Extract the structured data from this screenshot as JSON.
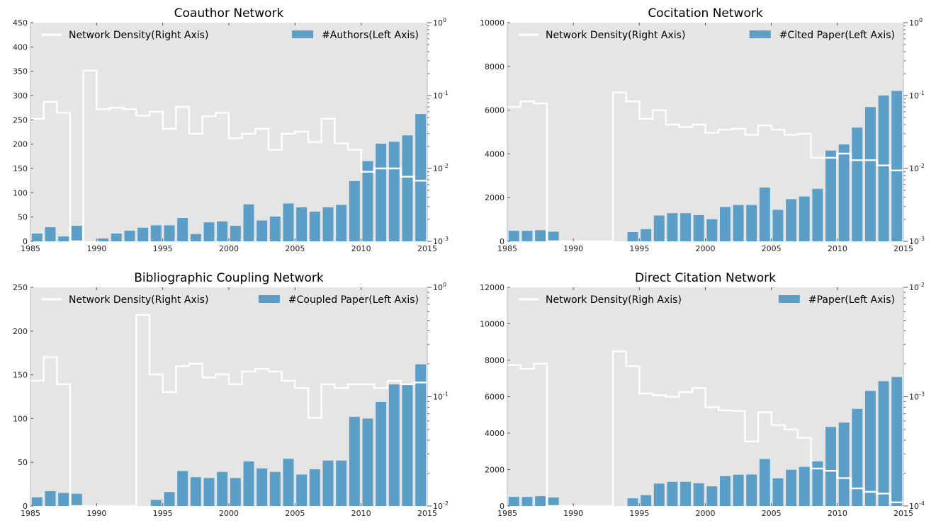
{
  "chart_data": [
    {
      "type": "bar",
      "title": "Coauthor Network",
      "x": [
        1985,
        1986,
        1987,
        1988,
        1989,
        1990,
        1991,
        1992,
        1993,
        1994,
        1995,
        1996,
        1997,
        1998,
        1999,
        2000,
        2001,
        2002,
        2003,
        2004,
        2005,
        2006,
        2007,
        2008,
        2009,
        2010,
        2011,
        2012,
        2013,
        2014
      ],
      "xlim": [
        1985,
        2015
      ],
      "xticks": [
        "1985",
        "1990",
        "1995",
        "2000",
        "2005",
        "2010",
        "2015"
      ],
      "ylim_left": [
        0,
        450
      ],
      "yticks_left": [
        "0",
        "50",
        "100",
        "150",
        "200",
        "250",
        "300",
        "350",
        "400",
        "450"
      ],
      "ylim_right_log": [
        -3,
        0
      ],
      "yticks_right": [
        {
          "base": "10",
          "exp": "-3"
        },
        {
          "base": "10",
          "exp": "-2"
        },
        {
          "base": "10",
          "exp": "-1"
        },
        {
          "base": "10",
          "exp": "0"
        }
      ],
      "grid": false,
      "series": [
        {
          "name": "#Authors(Left Axis)",
          "axis": "left",
          "kind": "bar",
          "color": "#5b9fc9",
          "values": [
            16,
            29,
            10,
            32,
            0,
            6,
            16,
            22,
            28,
            33,
            33,
            48,
            15,
            39,
            41,
            32,
            76,
            43,
            51,
            78,
            70,
            61,
            70,
            75,
            124,
            165,
            201,
            205,
            218,
            262
          ]
        },
        {
          "name": "Network Density(Right Axis)",
          "axis": "right",
          "kind": "step",
          "color": "#ffffff",
          "values": [
            0.048,
            0.082,
            0.058,
            0.001,
            0.22,
            0.065,
            0.068,
            0.065,
            0.053,
            0.06,
            0.035,
            0.07,
            0.03,
            0.052,
            0.058,
            0.026,
            0.03,
            0.035,
            0.018,
            0.03,
            0.032,
            0.023,
            0.048,
            0.022,
            0.018,
            0.009,
            0.01,
            0.01,
            0.0077,
            0.0068
          ]
        }
      ],
      "legend": {
        "left": "Network Density(Right Axis)",
        "right": "#Authors(Left Axis)",
        "placement": "top"
      }
    },
    {
      "type": "bar",
      "title": "Cocitation Network",
      "x": [
        1985,
        1986,
        1987,
        1988,
        1989,
        1990,
        1991,
        1992,
        1993,
        1994,
        1995,
        1996,
        1997,
        1998,
        1999,
        2000,
        2001,
        2002,
        2003,
        2004,
        2005,
        2006,
        2007,
        2008,
        2009,
        2010,
        2011,
        2012,
        2013,
        2014
      ],
      "xlim": [
        1985,
        2015
      ],
      "xticks": [
        "1985",
        "1990",
        "1995",
        "2000",
        "2005",
        "2010",
        "2015"
      ],
      "ylim_left": [
        0,
        10000
      ],
      "yticks_left": [
        "0",
        "2000",
        "4000",
        "6000",
        "8000",
        "10000"
      ],
      "ylim_right_log": [
        -3,
        0
      ],
      "yticks_right": [
        {
          "base": "10",
          "exp": "-3"
        },
        {
          "base": "10",
          "exp": "-2"
        },
        {
          "base": "10",
          "exp": "-1"
        },
        {
          "base": "10",
          "exp": "0"
        }
      ],
      "grid": false,
      "series": [
        {
          "name": "#Cited Paper(Left Axis)",
          "axis": "left",
          "kind": "bar",
          "color": "#5b9fc9",
          "values": [
            480,
            480,
            510,
            440,
            0,
            0,
            0,
            0,
            0,
            420,
            560,
            1180,
            1290,
            1290,
            1200,
            1010,
            1570,
            1660,
            1660,
            2460,
            1440,
            1930,
            2050,
            2400,
            4150,
            4430,
            5200,
            6140,
            6670,
            6880
          ]
        },
        {
          "name": "Network Density(Right Axis)",
          "axis": "right",
          "kind": "step",
          "color": "#ffffff",
          "values": [
            0.07,
            0.083,
            0.078,
            0.001,
            0.001,
            0.001,
            0.001,
            0.001,
            0.11,
            0.083,
            0.048,
            0.063,
            0.04,
            0.037,
            0.04,
            0.031,
            0.034,
            0.035,
            0.029,
            0.039,
            0.034,
            0.029,
            0.03,
            0.014,
            0.014,
            0.016,
            0.013,
            0.013,
            0.011,
            0.0094
          ]
        }
      ],
      "legend": {
        "left": "Network Density(Right Axis)",
        "right": "#Cited Paper(Left Axis)",
        "placement": "top"
      }
    },
    {
      "type": "bar",
      "title": "Bibliographic Coupling Network",
      "x": [
        1985,
        1986,
        1987,
        1988,
        1989,
        1990,
        1991,
        1992,
        1993,
        1994,
        1995,
        1996,
        1997,
        1998,
        1999,
        2000,
        2001,
        2002,
        2003,
        2004,
        2005,
        2006,
        2007,
        2008,
        2009,
        2010,
        2011,
        2012,
        2013,
        2014
      ],
      "xlim": [
        1985,
        2015
      ],
      "xticks": [
        "1985",
        "1990",
        "1995",
        "2000",
        "2005",
        "2010",
        "2015"
      ],
      "ylim_left": [
        0,
        250
      ],
      "yticks_left": [
        "0",
        "50",
        "100",
        "150",
        "200",
        "250"
      ],
      "ylim_right_log": [
        -2,
        0
      ],
      "yticks_right": [
        {
          "base": "10",
          "exp": "-2"
        },
        {
          "base": "10",
          "exp": "-1"
        },
        {
          "base": "10",
          "exp": "0"
        }
      ],
      "grid": false,
      "series": [
        {
          "name": "#Coupled Paper(Left Axis)",
          "axis": "left",
          "kind": "bar",
          "color": "#5b9fc9",
          "values": [
            10,
            17,
            15,
            14,
            0,
            0,
            0,
            0,
            0,
            7,
            16,
            40,
            33,
            32,
            39,
            32,
            51,
            43,
            39,
            54,
            36,
            42,
            52,
            52,
            102,
            100,
            119,
            139,
            140,
            162
          ]
        },
        {
          "name": "Network Density(Right Axis)",
          "axis": "right",
          "kind": "step",
          "color": "#ffffff",
          "values": [
            0.14,
            0.23,
            0.13,
            0.01,
            0.01,
            0.01,
            0.01,
            0.01,
            0.56,
            0.16,
            0.11,
            0.19,
            0.2,
            0.15,
            0.16,
            0.13,
            0.17,
            0.18,
            0.17,
            0.14,
            0.12,
            0.064,
            0.13,
            0.12,
            0.13,
            0.13,
            0.12,
            0.14,
            0.13,
            0.135
          ]
        }
      ],
      "legend": {
        "left": "Network Density(Right Axis)",
        "right": "#Coupled Paper(Left Axis)",
        "placement": "top"
      }
    },
    {
      "type": "bar",
      "title": "Direct Citation Network",
      "x": [
        1985,
        1986,
        1987,
        1988,
        1989,
        1990,
        1991,
        1992,
        1993,
        1994,
        1995,
        1996,
        1997,
        1998,
        1999,
        2000,
        2001,
        2002,
        2003,
        2004,
        2005,
        2006,
        2007,
        2008,
        2009,
        2010,
        2011,
        2012,
        2013,
        2014
      ],
      "xlim": [
        1985,
        2015
      ],
      "xticks": [
        "1985",
        "1990",
        "1995",
        "2000",
        "2005",
        "2010",
        "2015"
      ],
      "ylim_left": [
        0,
        12000
      ],
      "yticks_left": [
        "0",
        "2000",
        "4000",
        "6000",
        "8000",
        "10000",
        "12000"
      ],
      "ylim_right_log": [
        -4,
        -2
      ],
      "yticks_right": [
        {
          "base": "10",
          "exp": "-4"
        },
        {
          "base": "10",
          "exp": "-3"
        },
        {
          "base": "10",
          "exp": "-2"
        }
      ],
      "grid": false,
      "series": [
        {
          "name": "#Paper(Left Axis)",
          "axis": "left",
          "kind": "bar",
          "color": "#5b9fc9",
          "values": [
            500,
            500,
            540,
            470,
            0,
            0,
            0,
            0,
            0,
            420,
            600,
            1230,
            1330,
            1330,
            1250,
            1080,
            1640,
            1720,
            1730,
            2580,
            1520,
            1990,
            2150,
            2450,
            4340,
            4580,
            5330,
            6320,
            6850,
            7080
          ]
        },
        {
          "name": "Network Density(Righ Axis)",
          "axis": "right",
          "kind": "step",
          "color": "#ffffff",
          "values": [
            0.00195,
            0.0018,
            0.002,
            0.0001,
            0.0001,
            0.0001,
            0.0001,
            0.0001,
            0.0026,
            0.0019,
            0.00107,
            0.00103,
            0.001,
            0.0011,
            0.0012,
            0.0008,
            0.00075,
            0.00074,
            0.00039,
            0.00072,
            0.00055,
            0.0005,
            0.00042,
            0.00022,
            0.00021,
            0.00018,
            0.000145,
            0.000135,
            0.00013,
            0.000108
          ]
        }
      ],
      "legend": {
        "left": "Network Density(Righ Axis)",
        "right": "#Paper(Left Axis)",
        "placement": "top"
      }
    }
  ]
}
